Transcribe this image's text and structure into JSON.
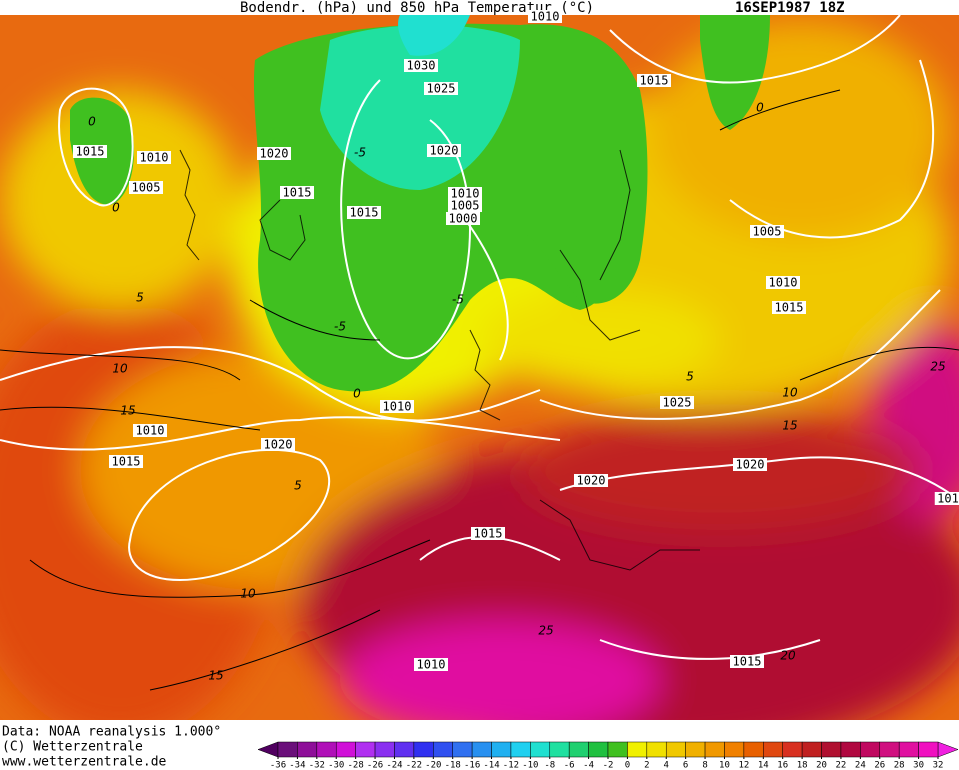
{
  "header": {
    "title": "Bodendr. (hPa) und 850 hPa Temperatur (°C)",
    "date": "16SEP1987 18Z"
  },
  "footer": {
    "lines": [
      "Data: NOAA reanalysis 1.000°",
      "(C) Wetterzentrale",
      "www.wetterzentrale.de"
    ]
  },
  "isobar_labels": [
    "1030",
    "1025",
    "1020",
    "1015",
    "1015",
    "1010",
    "1005",
    "1020",
    "1015",
    "1015",
    "1010",
    "1005",
    "1000",
    "1005",
    "1010",
    "1015",
    "1010",
    "1025",
    "1010",
    "1015",
    "1020",
    "1020",
    "1020",
    "1015",
    "1010",
    "1015",
    "101",
    "1010"
  ],
  "isotherm_labels": [
    "0",
    "0",
    "0",
    "-5",
    "-5",
    "0",
    "5",
    "10",
    "15",
    "5",
    "10",
    "15",
    "5",
    "10",
    "15",
    "25",
    "25",
    "20",
    "-5"
  ],
  "colorbar": {
    "ticks": [
      -36,
      -34,
      -32,
      -30,
      -28,
      -26,
      -24,
      -22,
      -20,
      -18,
      -16,
      -14,
      -12,
      -10,
      -8,
      -6,
      -4,
      -2,
      0,
      2,
      4,
      6,
      8,
      10,
      12,
      14,
      16,
      18,
      20,
      22,
      24,
      26,
      28,
      30,
      32
    ],
    "colors": [
      "#6a0f7a",
      "#8e0f99",
      "#b010b8",
      "#d010d8",
      "#b030f0",
      "#8a30f0",
      "#6030f0",
      "#3030f0",
      "#3050f0",
      "#3070f0",
      "#2890f0",
      "#20b0f0",
      "#20d0f0",
      "#20e0d0",
      "#20e0a0",
      "#20d070",
      "#20c040",
      "#40c020",
      "#f0f000",
      "#f0e000",
      "#f0c800",
      "#f0b000",
      "#f09800",
      "#f08000",
      "#e86000",
      "#e04810",
      "#d83020",
      "#c02020",
      "#b01030",
      "#b00840",
      "#c00860",
      "#d01080",
      "#e010a0",
      "#f010c0"
    ],
    "under": "#500060",
    "over": "#f020e0"
  }
}
